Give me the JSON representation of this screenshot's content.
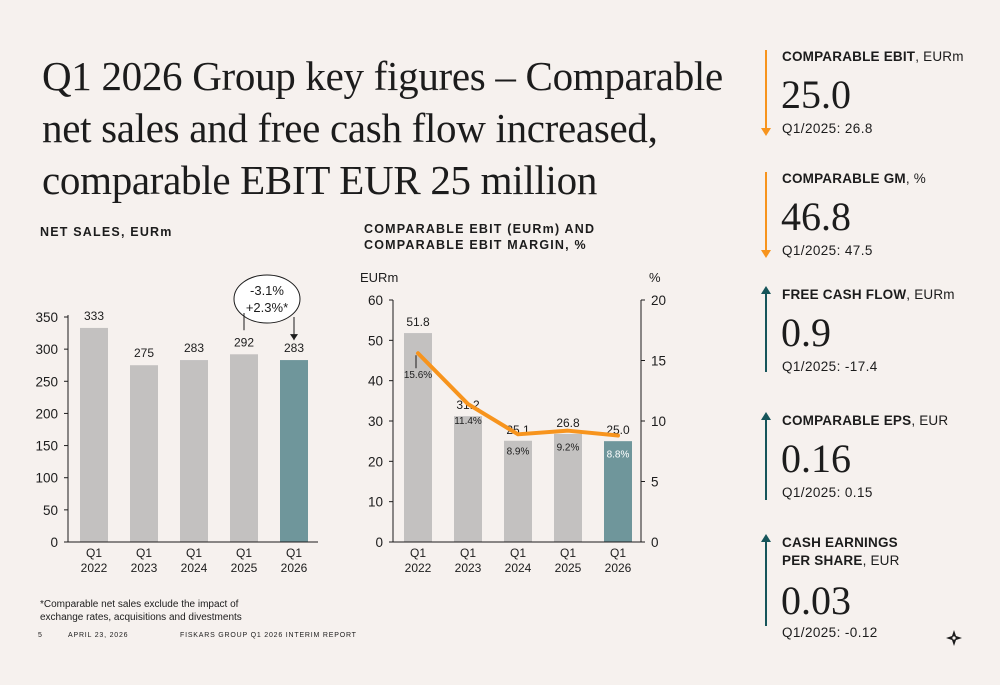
{
  "title": "Q1 2026 Group key figures – Comparable net sales and free cash flow increased, comparable EBIT EUR 25 million",
  "colors": {
    "bar_grey": "#c3c1c0",
    "bar_highlight": "#6f969b",
    "orange": "#f7941d",
    "teal_arrow": "#16555a"
  },
  "chart_data": [
    {
      "type": "bar",
      "title": "NET SALES, EURm",
      "categories": [
        "Q1\n2022",
        "Q1\n2023",
        "Q1\n2024",
        "Q1\n2025",
        "Q1\n2026"
      ],
      "values": [
        333,
        275,
        283,
        292,
        283
      ],
      "data_labels": [
        "333",
        "275",
        "283",
        "292",
        "283"
      ],
      "ylim": [
        0,
        350
      ],
      "yticks": [
        0,
        50,
        100,
        150,
        200,
        250,
        300,
        350
      ],
      "annotation": {
        "line1": "-3.1%",
        "line2": "+2.3%*"
      }
    },
    {
      "type": "bar+line",
      "title": "COMPARABLE EBIT (EURm) AND COMPARABLE EBIT MARGIN, %",
      "categories": [
        "Q1\n2022",
        "Q1\n2023",
        "Q1\n2024",
        "Q1\n2025",
        "Q1\n2026"
      ],
      "ylabel_left": "EURm",
      "ylabel_right": "%",
      "series": [
        {
          "name": "Comparable EBIT (EURm)",
          "type": "bar",
          "values": [
            51.8,
            31.2,
            25.1,
            26.8,
            25.0
          ],
          "labels": [
            "51.8",
            "31.2",
            "25.1",
            "26.8",
            "25.0"
          ]
        },
        {
          "name": "Comparable EBIT margin, %",
          "type": "line",
          "axis": "right",
          "values": [
            15.6,
            11.4,
            8.9,
            9.2,
            8.8
          ],
          "labels": [
            "15.6%",
            "11.4%",
            "8.9%",
            "9.2%",
            "8.8%"
          ]
        }
      ],
      "ylim_left": [
        0,
        60
      ],
      "yticks_left": [
        0,
        10,
        20,
        30,
        40,
        50,
        60
      ],
      "ylim_right": [
        0,
        20
      ],
      "yticks_right": [
        0,
        5,
        10,
        15,
        20
      ]
    }
  ],
  "kpis": [
    {
      "label_bold": "COMPARABLE EBIT",
      "label_rest": ", EURm",
      "value": "25.0",
      "prior": "Q1/2025: 26.8",
      "direction": "down"
    },
    {
      "label_bold": "COMPARABLE GM",
      "label_rest": ", %",
      "value": "46.8",
      "prior": "Q1/2025: 47.5",
      "direction": "down"
    },
    {
      "label_bold": "FREE CASH FLOW",
      "label_rest": ", EURm",
      "value": "0.9",
      "prior": "Q1/2025: -17.4",
      "direction": "up"
    },
    {
      "label_bold": "COMPARABLE EPS",
      "label_rest": ", EUR",
      "value": "0.16",
      "prior": "Q1/2025: 0.15",
      "direction": "up"
    },
    {
      "label_bold_line1": "CASH  EARNINGS",
      "label_bold_line2": "PER SHARE",
      "label_rest": ", EUR",
      "value": "0.03",
      "prior": "Q1/2025: -0.12",
      "direction": "up"
    }
  ],
  "footnote": "*Comparable net sales exclude the impact of exchange rates, acquisitions and divestments",
  "footer": {
    "page": "5",
    "date": "APRIL 23, 2026",
    "report": "FISKARS GROUP Q1 2026 INTERIM REPORT"
  }
}
